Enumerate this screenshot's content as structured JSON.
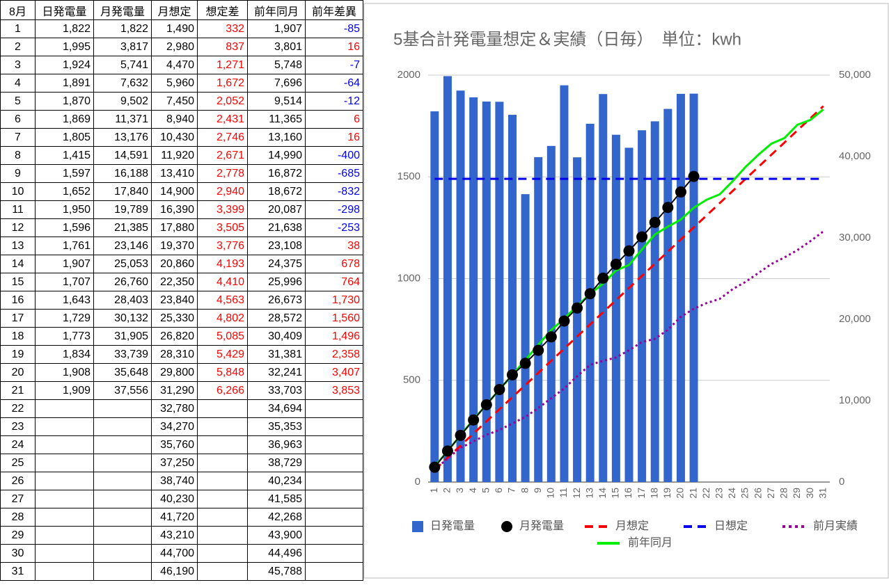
{
  "table": {
    "header": [
      "8月",
      "日発電量",
      "月発電量",
      "月想定",
      "想定差",
      "前年同月",
      "前年差異"
    ],
    "rows": [
      [
        "1",
        "1,822",
        "1,822",
        "1,490",
        "332",
        "1,907",
        "-85"
      ],
      [
        "2",
        "1,995",
        "3,817",
        "2,980",
        "837",
        "3,801",
        "16"
      ],
      [
        "3",
        "1,924",
        "5,741",
        "4,470",
        "1,271",
        "5,748",
        "-7"
      ],
      [
        "4",
        "1,891",
        "7,632",
        "5,960",
        "1,672",
        "7,696",
        "-64"
      ],
      [
        "5",
        "1,870",
        "9,502",
        "7,450",
        "2,052",
        "9,514",
        "-12"
      ],
      [
        "6",
        "1,869",
        "11,371",
        "8,940",
        "2,431",
        "11,365",
        "6"
      ],
      [
        "7",
        "1,805",
        "13,176",
        "10,430",
        "2,746",
        "13,160",
        "16"
      ],
      [
        "8",
        "1,415",
        "14,591",
        "11,920",
        "2,671",
        "14,990",
        "-400"
      ],
      [
        "9",
        "1,597",
        "16,188",
        "13,410",
        "2,778",
        "16,872",
        "-685"
      ],
      [
        "10",
        "1,652",
        "17,840",
        "14,900",
        "2,940",
        "18,672",
        "-832"
      ],
      [
        "11",
        "1,950",
        "19,789",
        "16,390",
        "3,399",
        "20,087",
        "-298"
      ],
      [
        "12",
        "1,596",
        "21,385",
        "17,880",
        "3,505",
        "21,638",
        "-253"
      ],
      [
        "13",
        "1,761",
        "23,146",
        "19,370",
        "3,776",
        "23,108",
        "38"
      ],
      [
        "14",
        "1,907",
        "25,053",
        "20,860",
        "4,193",
        "24,375",
        "678"
      ],
      [
        "15",
        "1,707",
        "26,760",
        "22,350",
        "4,410",
        "25,996",
        "764"
      ],
      [
        "16",
        "1,643",
        "28,403",
        "23,840",
        "4,563",
        "26,673",
        "1,730"
      ],
      [
        "17",
        "1,729",
        "30,132",
        "25,330",
        "4,802",
        "28,572",
        "1,560"
      ],
      [
        "18",
        "1,773",
        "31,905",
        "26,820",
        "5,085",
        "30,409",
        "1,496"
      ],
      [
        "19",
        "1,834",
        "33,739",
        "28,310",
        "5,429",
        "31,381",
        "2,358"
      ],
      [
        "20",
        "1,908",
        "35,648",
        "29,800",
        "5,848",
        "32,241",
        "3,407"
      ],
      [
        "21",
        "1,909",
        "37,556",
        "31,290",
        "6,266",
        "33,703",
        "3,853"
      ],
      [
        "22",
        null,
        null,
        "32,780",
        null,
        "34,694",
        null
      ],
      [
        "23",
        null,
        null,
        "34,270",
        null,
        "35,353",
        null
      ],
      [
        "24",
        null,
        null,
        "35,760",
        null,
        "36,963",
        null
      ],
      [
        "25",
        null,
        null,
        "37,250",
        null,
        "38,729",
        null
      ],
      [
        "26",
        null,
        null,
        "38,740",
        null,
        "40,234",
        null
      ],
      [
        "27",
        null,
        null,
        "40,230",
        null,
        "41,585",
        null
      ],
      [
        "28",
        null,
        null,
        "41,720",
        null,
        "42,268",
        null
      ],
      [
        "29",
        null,
        null,
        "43,210",
        null,
        "43,900",
        null
      ],
      [
        "30",
        null,
        null,
        "44,700",
        null,
        "44,496",
        null
      ],
      [
        "31",
        null,
        null,
        "46,190",
        null,
        "45,788",
        null
      ]
    ]
  },
  "chart_data": {
    "type": "combo",
    "title": "5基合計発電量想定＆実績（日毎）　単位：kwh",
    "categories": [
      "1",
      "2",
      "3",
      "4",
      "5",
      "6",
      "7",
      "8",
      "9",
      "10",
      "11",
      "12",
      "13",
      "14",
      "15",
      "16",
      "17",
      "18",
      "19",
      "20",
      "21",
      "22",
      "23",
      "24",
      "25",
      "26",
      "27",
      "28",
      "29",
      "30",
      "31"
    ],
    "ylim": [
      0,
      2000
    ],
    "yticks": [
      0,
      500,
      1000,
      1500,
      2000
    ],
    "y2lim": [
      0,
      50000
    ],
    "y2ticks": [
      0,
      {
        "value": 10000,
        "label": "10,000"
      },
      {
        "value": 20000,
        "label": "20,000"
      },
      {
        "value": 30000,
        "label": "30,000"
      },
      {
        "value": 40000,
        "label": "40,000"
      },
      {
        "value": 50000,
        "label": "50,000"
      }
    ],
    "grid": true,
    "legend": "bottom",
    "series": [
      {
        "name": "日発電量",
        "color": "#3366cc",
        "style": "bar",
        "axis": "y",
        "values": [
          1822,
          1995,
          1924,
          1891,
          1870,
          1869,
          1805,
          1415,
          1597,
          1652,
          1950,
          1596,
          1761,
          1907,
          1707,
          1643,
          1729,
          1773,
          1834,
          1908,
          1909,
          null,
          null,
          null,
          null,
          null,
          null,
          null,
          null,
          null,
          null
        ]
      },
      {
        "name": "月発電量",
        "color": "#000000",
        "style": "marker",
        "axis": "y2",
        "values": [
          1822,
          3817,
          5741,
          7632,
          9502,
          11371,
          13176,
          14591,
          16188,
          17840,
          19789,
          21385,
          23146,
          25053,
          26760,
          28403,
          30132,
          31905,
          33739,
          35648,
          37556,
          null,
          null,
          null,
          null,
          null,
          null,
          null,
          null,
          null,
          null
        ]
      },
      {
        "name": "月想定",
        "color": "#ff0000",
        "style": "dashed",
        "axis": "y2",
        "values": [
          1490,
          2980,
          4470,
          5960,
          7450,
          8940,
          10430,
          11920,
          13410,
          14900,
          16390,
          17880,
          19370,
          20860,
          22350,
          23840,
          25330,
          26820,
          28310,
          29800,
          31290,
          32780,
          34270,
          35760,
          37250,
          38740,
          40230,
          41720,
          43210,
          44700,
          46190
        ]
      },
      {
        "name": "日想定",
        "color": "#0000ee",
        "style": "dashed",
        "axis": "y",
        "values": [
          1490,
          1490,
          1490,
          1490,
          1490,
          1490,
          1490,
          1490,
          1490,
          1490,
          1490,
          1490,
          1490,
          1490,
          1490,
          1490,
          1490,
          1490,
          1490,
          1490,
          1490,
          1490,
          1490,
          1490,
          1490,
          1490,
          1490,
          1490,
          1490,
          1490,
          1490
        ]
      },
      {
        "name": "前月実績",
        "color": "#990099",
        "style": "dotted",
        "axis": "y2",
        "values": [
          1500,
          2900,
          4200,
          5000,
          5800,
          6400,
          7200,
          8000,
          9100,
          10300,
          11500,
          13000,
          14400,
          14900,
          15300,
          16200,
          17200,
          17600,
          18700,
          20300,
          21300,
          22000,
          22500,
          23700,
          24600,
          25700,
          26800,
          27600,
          28500,
          29600,
          30800
        ]
      },
      {
        "name": "前年同月",
        "color": "#00ee00",
        "style": "line",
        "axis": "y2",
        "values": [
          1907,
          3801,
          5748,
          7696,
          9514,
          11365,
          13160,
          14990,
          16872,
          18672,
          20087,
          21638,
          23108,
          24375,
          25996,
          26673,
          28572,
          30409,
          31381,
          32241,
          33703,
          34694,
          35353,
          36963,
          38729,
          40234,
          41585,
          42268,
          43900,
          44496,
          45788
        ]
      }
    ]
  }
}
